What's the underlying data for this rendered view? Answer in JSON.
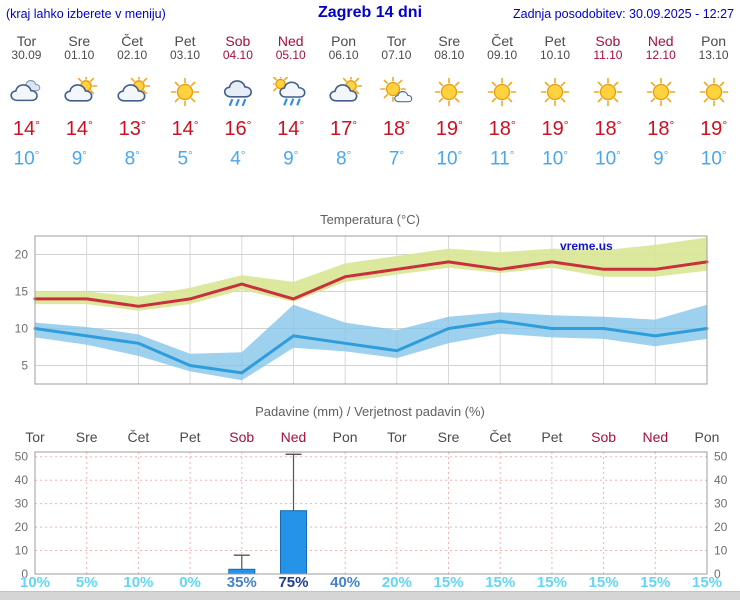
{
  "header": {
    "hint": "(kraj lahko izberete v meniju)",
    "title": "Zagreb 14 dni",
    "updated": "Zadnja posodobitev: 30.09.2025 - 12:27"
  },
  "colors": {
    "accent_blue": "#0000cd",
    "temp_high": "#cc1122",
    "temp_low": "#49a8ec",
    "weekend": "#a50f3c",
    "prob_low": "#63d6f5",
    "prob_mid": "#4583c7",
    "prob_high": "#1f3d8f",
    "bar_blue": "#2593e8"
  },
  "days": [
    {
      "name": "Tor",
      "date": "30.09",
      "weekend": false,
      "icon": "cloudy",
      "high": "14",
      "low": "10"
    },
    {
      "name": "Sre",
      "date": "01.10",
      "weekend": false,
      "icon": "partly-cloudy",
      "high": "14",
      "low": "9"
    },
    {
      "name": "Čet",
      "date": "02.10",
      "weekend": false,
      "icon": "partly-cloudy",
      "high": "13",
      "low": "8"
    },
    {
      "name": "Pet",
      "date": "03.10",
      "weekend": false,
      "icon": "sunny",
      "high": "14",
      "low": "5"
    },
    {
      "name": "Sob",
      "date": "04.10",
      "weekend": true,
      "icon": "rain",
      "high": "16",
      "low": "4"
    },
    {
      "name": "Ned",
      "date": "05.10",
      "weekend": true,
      "icon": "rain-showers",
      "high": "14",
      "low": "9"
    },
    {
      "name": "Pon",
      "date": "06.10",
      "weekend": false,
      "icon": "partly-cloudy",
      "high": "17",
      "low": "8"
    },
    {
      "name": "Tor",
      "date": "07.10",
      "weekend": false,
      "icon": "mostly-sunny",
      "high": "18",
      "low": "7"
    },
    {
      "name": "Sre",
      "date": "08.10",
      "weekend": false,
      "icon": "sunny",
      "high": "19",
      "low": "10"
    },
    {
      "name": "Čet",
      "date": "09.10",
      "weekend": false,
      "icon": "sunny",
      "high": "18",
      "low": "11"
    },
    {
      "name": "Pet",
      "date": "10.10",
      "weekend": false,
      "icon": "sunny",
      "high": "19",
      "low": "10"
    },
    {
      "name": "Sob",
      "date": "11.10",
      "weekend": true,
      "icon": "sunny",
      "high": "18",
      "low": "10"
    },
    {
      "name": "Ned",
      "date": "12.10",
      "weekend": true,
      "icon": "sunny",
      "high": "18",
      "low": "9"
    },
    {
      "name": "Pon",
      "date": "13.10",
      "weekend": false,
      "icon": "sunny",
      "high": "19",
      "low": "10"
    }
  ],
  "chart_data": [
    {
      "type": "line",
      "title": "Temperatura (°C)",
      "watermark": "vreme.us",
      "categories": [
        "Tor 30.09",
        "Sre 01.10",
        "Čet 02.10",
        "Pet 03.10",
        "Sob 04.10",
        "Ned 05.10",
        "Pon 06.10",
        "Tor 07.10",
        "Sre 08.10",
        "Čet 09.10",
        "Pet 10.10",
        "Sob 11.10",
        "Ned 12.10",
        "Pon 13.10"
      ],
      "ylim": [
        2.5,
        22.5
      ],
      "yticks": [
        5,
        10,
        15,
        20
      ],
      "grid": true,
      "series": [
        {
          "name": "max",
          "color": "#c9303c",
          "values": [
            14,
            14,
            13,
            14,
            16,
            14,
            17,
            18,
            19,
            18,
            19,
            18,
            18,
            19
          ]
        },
        {
          "name": "min",
          "color": "#2f9ddb",
          "values": [
            10,
            9,
            8,
            5,
            4,
            9,
            8,
            7,
            10,
            11,
            10,
            10,
            9,
            10
          ]
        },
        {
          "name": "max_range_upper",
          "color": "#d7e694",
          "values": [
            15,
            15,
            14.3,
            15.5,
            17.2,
            16.3,
            18.8,
            19.8,
            20.8,
            20.3,
            20.8,
            20.6,
            21.3,
            22.3
          ]
        },
        {
          "name": "max_range_lower",
          "color": "#d7e694",
          "values": [
            13.3,
            13.3,
            12.4,
            13.3,
            15.2,
            13.6,
            16.3,
            17.3,
            18.2,
            17.5,
            18.2,
            17,
            17,
            17.8
          ]
        },
        {
          "name": "min_range_upper",
          "color": "#86c5ea",
          "values": [
            10.8,
            10.2,
            9.2,
            6.6,
            6.8,
            13.2,
            10.8,
            9.8,
            11.6,
            12.2,
            11.8,
            11.6,
            11.2,
            13.2
          ]
        },
        {
          "name": "min_range_lower",
          "color": "#86c5ea",
          "values": [
            8.8,
            7.8,
            6.3,
            4.2,
            3,
            7.4,
            6.9,
            6,
            8,
            9.3,
            8.8,
            8.6,
            7.6,
            8.6
          ]
        }
      ]
    },
    {
      "type": "bar",
      "title": "Padavine (mm) / Verjetnost padavin (%)",
      "categories": [
        "Tor",
        "Sre",
        "Čet",
        "Pet",
        "Sob",
        "Ned",
        "Pon",
        "Tor",
        "Sre",
        "Čet",
        "Pet",
        "Sob",
        "Ned",
        "Pon"
      ],
      "ylim": [
        0,
        52
      ],
      "yticks": [
        0,
        10,
        20,
        30,
        40,
        50
      ],
      "precip_mm": [
        0,
        0,
        0,
        0,
        2,
        27,
        0,
        0,
        0,
        0,
        0,
        0,
        0,
        0
      ],
      "precip_max_mm": [
        0,
        0,
        0,
        0,
        8,
        51,
        0,
        0,
        0,
        0,
        0,
        0,
        0,
        0
      ],
      "probability_pct": [
        10,
        5,
        10,
        0,
        35,
        75,
        40,
        20,
        15,
        15,
        15,
        15,
        15,
        15
      ]
    }
  ]
}
